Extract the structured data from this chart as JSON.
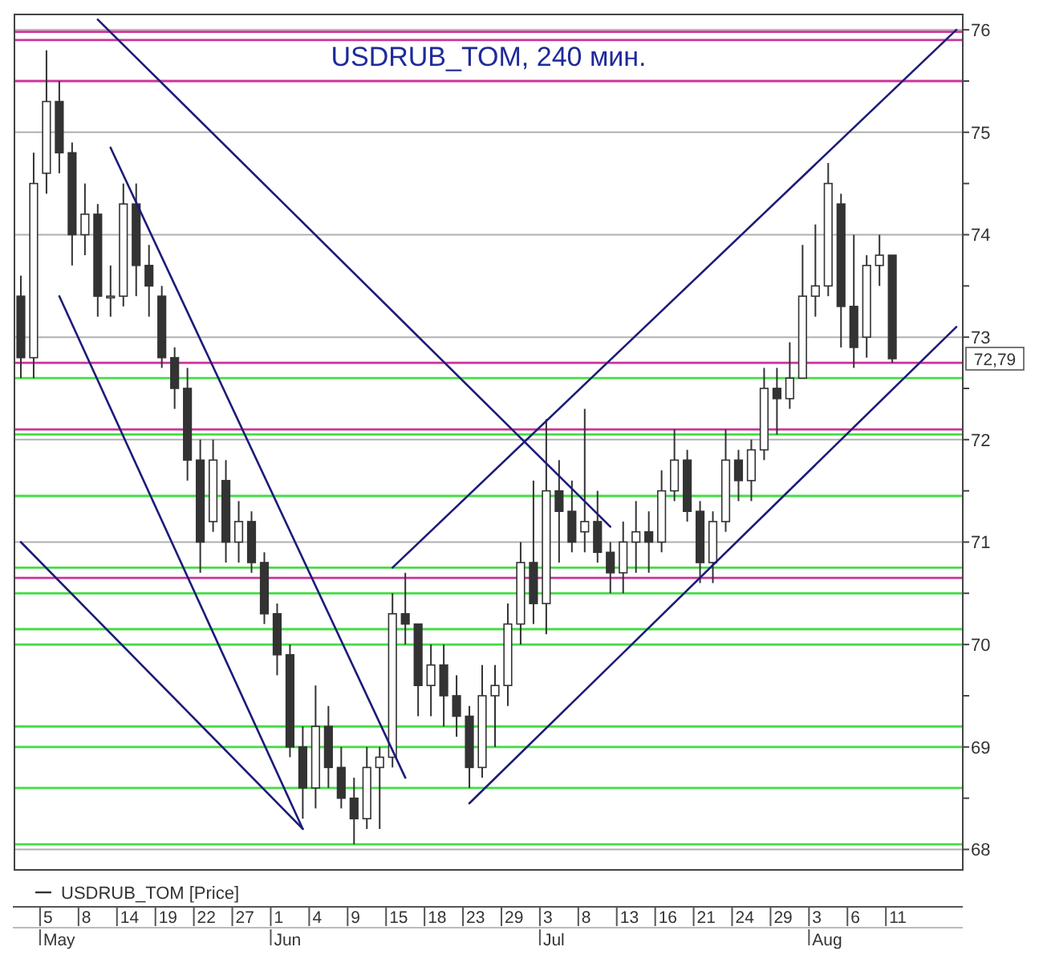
{
  "chart_data": {
    "type": "candlestick",
    "title": "USDRUB_TOM, 240 мин.",
    "categories": [
      null,
      null,
      "5",
      null,
      null,
      "8",
      null,
      null,
      "14",
      null,
      null,
      "19",
      null,
      null,
      "22",
      null,
      null,
      "27",
      null,
      null,
      "1",
      null,
      null,
      "4",
      null,
      null,
      "9",
      null,
      null,
      "15",
      null,
      null,
      "18",
      null,
      null,
      "23",
      null,
      null,
      "29",
      null,
      null,
      "3",
      null,
      null,
      "8",
      null,
      null,
      "13",
      null,
      null,
      "16",
      null,
      null,
      "21",
      null,
      null,
      "24",
      null,
      null,
      "29",
      null,
      null,
      "3",
      null,
      null,
      "6",
      null,
      null,
      "11",
      null,
      null,
      null,
      null,
      null
    ],
    "ylim": [
      67.8,
      76.15
    ],
    "yticks": [
      68,
      {
        "value": 68.5,
        "label": null
      },
      69,
      {
        "value": 69.5,
        "label": null
      },
      70,
      {
        "value": 70.5,
        "label": null
      },
      71,
      {
        "value": 71.5,
        "label": null
      },
      72,
      {
        "value": 72.5,
        "label": null
      },
      73,
      {
        "value": 73.5,
        "label": null
      },
      74,
      {
        "value": 74.5,
        "label": null
      },
      75,
      {
        "value": 75.5,
        "label": null
      },
      76
    ],
    "grid": "y",
    "legend": "bottom",
    "series": [
      {
        "name": "USDRUB_TOM [Price]",
        "color": "#333333",
        "ohlc": [
          [
            73.4,
            73.6,
            72.6,
            72.8
          ],
          [
            72.8,
            74.8,
            72.6,
            74.5
          ],
          [
            74.6,
            75.8,
            74.4,
            75.3
          ],
          [
            75.3,
            75.5,
            74.6,
            74.8
          ],
          [
            74.8,
            74.9,
            73.7,
            74.0
          ],
          [
            74.0,
            74.5,
            73.8,
            74.2
          ],
          [
            74.2,
            74.3,
            73.2,
            73.4
          ],
          [
            73.4,
            73.7,
            73.2,
            73.4
          ],
          [
            73.4,
            74.5,
            73.3,
            74.3
          ],
          [
            74.3,
            74.5,
            73.4,
            73.7
          ],
          [
            73.7,
            73.9,
            73.2,
            73.5
          ],
          [
            73.4,
            73.5,
            72.7,
            72.8
          ],
          [
            72.8,
            72.9,
            72.3,
            72.5
          ],
          [
            72.5,
            72.7,
            71.6,
            71.8
          ],
          [
            71.8,
            72.0,
            70.7,
            71.0
          ],
          [
            71.2,
            72.0,
            71.1,
            71.8
          ],
          [
            71.6,
            71.8,
            70.8,
            71.0
          ],
          [
            71.0,
            71.4,
            70.8,
            71.2
          ],
          [
            71.2,
            71.3,
            70.7,
            70.8
          ],
          [
            70.8,
            70.9,
            70.2,
            70.3
          ],
          [
            70.3,
            70.4,
            69.7,
            69.9
          ],
          [
            69.9,
            70.0,
            68.9,
            69.0
          ],
          [
            69.0,
            69.2,
            68.3,
            68.6
          ],
          [
            68.6,
            69.6,
            68.4,
            69.2
          ],
          [
            69.2,
            69.4,
            68.6,
            68.8
          ],
          [
            68.8,
            69.0,
            68.4,
            68.5
          ],
          [
            68.5,
            68.7,
            68.05,
            68.3
          ],
          [
            68.3,
            69.0,
            68.2,
            68.8
          ],
          [
            68.8,
            69.0,
            68.2,
            68.9
          ],
          [
            68.9,
            70.5,
            68.8,
            70.3
          ],
          [
            70.3,
            70.7,
            70.0,
            70.2
          ],
          [
            70.2,
            70.2,
            69.3,
            69.6
          ],
          [
            69.6,
            70.0,
            69.3,
            69.8
          ],
          [
            69.8,
            70.0,
            69.2,
            69.5
          ],
          [
            69.5,
            69.7,
            69.1,
            69.3
          ],
          [
            69.3,
            69.4,
            68.6,
            68.8
          ],
          [
            68.8,
            69.8,
            68.7,
            69.5
          ],
          [
            69.5,
            69.8,
            69.0,
            69.6
          ],
          [
            69.6,
            70.4,
            69.4,
            70.2
          ],
          [
            70.2,
            71.0,
            70.0,
            70.8
          ],
          [
            70.8,
            71.6,
            70.2,
            70.4
          ],
          [
            70.4,
            72.2,
            70.1,
            71.5
          ],
          [
            71.5,
            71.8,
            70.8,
            71.3
          ],
          [
            71.3,
            71.6,
            70.9,
            71.0
          ],
          [
            71.1,
            72.3,
            70.9,
            71.2
          ],
          [
            71.2,
            71.5,
            70.8,
            70.9
          ],
          [
            70.9,
            71.0,
            70.5,
            70.7
          ],
          [
            70.7,
            71.2,
            70.5,
            71.0
          ],
          [
            71.0,
            71.4,
            70.7,
            71.1
          ],
          [
            71.1,
            71.3,
            70.7,
            71.0
          ],
          [
            71.0,
            71.7,
            70.9,
            71.5
          ],
          [
            71.5,
            72.1,
            71.4,
            71.8
          ],
          [
            71.8,
            71.9,
            71.2,
            71.3
          ],
          [
            71.3,
            71.4,
            70.6,
            70.8
          ],
          [
            70.8,
            71.3,
            70.6,
            71.2
          ],
          [
            71.2,
            72.1,
            71.1,
            71.8
          ],
          [
            71.8,
            71.9,
            71.4,
            71.6
          ],
          [
            71.6,
            72.0,
            71.4,
            71.9
          ],
          [
            71.9,
            72.7,
            71.8,
            72.5
          ],
          [
            72.5,
            72.7,
            72.05,
            72.4
          ],
          [
            72.4,
            72.95,
            72.3,
            72.6
          ],
          [
            72.6,
            73.9,
            72.6,
            73.4
          ],
          [
            73.4,
            74.1,
            73.2,
            73.5
          ],
          [
            73.5,
            74.7,
            73.4,
            74.5
          ],
          [
            74.3,
            74.4,
            72.9,
            73.3
          ],
          [
            73.3,
            74.0,
            72.7,
            72.9
          ],
          [
            73.0,
            73.8,
            72.8,
            73.7
          ],
          [
            73.7,
            74.0,
            73.5,
            73.8
          ],
          [
            73.8,
            73.8,
            72.75,
            72.79
          ],
          null,
          null,
          null,
          null,
          null
        ]
      },
      {
        "type": "line",
        "color": "#1c1c78",
        "values": [
          null,
          null,
          null,
          null,
          null,
          null,
          76.1,
          null,
          null,
          null,
          null,
          null,
          null,
          null,
          null,
          null,
          null,
          null,
          null,
          null,
          null,
          null,
          null,
          null,
          null,
          null,
          null,
          null,
          null,
          null,
          null,
          null,
          null,
          null,
          null,
          null,
          null,
          null,
          null,
          null,
          null,
          null,
          null,
          null,
          null,
          null,
          71.15,
          null,
          null,
          null,
          null,
          null,
          null,
          null,
          null,
          null,
          null,
          null,
          null,
          null,
          null,
          null,
          null,
          null,
          null,
          null,
          null,
          null,
          null,
          null,
          null,
          null,
          null,
          null
        ]
      },
      {
        "type": "line",
        "color": "#1c1c78",
        "values": [
          71.0,
          null,
          null,
          null,
          null,
          null,
          null,
          null,
          null,
          null,
          null,
          null,
          null,
          null,
          null,
          null,
          null,
          null,
          null,
          null,
          null,
          null,
          68.2,
          null,
          null,
          null,
          null,
          null,
          null,
          null,
          null,
          null,
          null,
          null,
          null,
          null,
          null,
          null,
          null,
          null,
          null,
          null,
          null,
          null,
          null,
          null,
          null,
          null,
          null,
          null,
          null,
          null,
          null,
          null,
          null,
          null,
          null,
          null,
          null,
          null,
          null,
          null,
          null,
          null,
          null,
          null,
          null,
          null,
          null,
          null,
          null,
          null,
          null,
          null
        ]
      },
      {
        "type": "line",
        "color": "#1c1c78",
        "values": [
          null,
          null,
          null,
          73.4,
          null,
          null,
          null,
          null,
          null,
          null,
          null,
          null,
          null,
          null,
          null,
          null,
          null,
          null,
          null,
          null,
          null,
          null,
          68.2,
          null,
          null,
          null,
          null,
          null,
          null,
          null,
          null,
          null,
          null,
          null,
          null,
          null,
          null,
          null,
          null,
          null,
          null,
          null,
          null,
          null,
          null,
          null,
          null,
          null,
          null,
          null,
          null,
          null,
          null,
          null,
          null,
          null,
          null,
          null,
          null,
          null,
          null,
          null,
          null,
          null,
          null,
          null,
          null,
          null,
          null,
          null,
          null,
          null,
          null,
          null
        ]
      },
      {
        "type": "line",
        "color": "#1c1c78",
        "values": [
          null,
          null,
          null,
          null,
          null,
          null,
          null,
          74.85,
          null,
          null,
          null,
          null,
          null,
          null,
          null,
          null,
          null,
          null,
          null,
          null,
          null,
          null,
          null,
          null,
          null,
          null,
          null,
          null,
          null,
          null,
          68.7,
          null,
          null,
          null,
          null,
          null,
          null,
          null,
          null,
          null,
          null,
          null,
          null,
          null,
          null,
          null,
          null,
          null,
          null,
          null,
          null,
          null,
          null,
          null,
          null,
          null,
          null,
          null,
          null,
          null,
          null,
          null,
          null,
          null,
          null,
          null,
          null,
          null,
          null,
          null,
          null,
          null,
          null,
          null
        ]
      },
      {
        "type": "line",
        "color": "#1c1c78",
        "values": [
          null,
          null,
          null,
          null,
          null,
          null,
          null,
          null,
          null,
          null,
          null,
          null,
          null,
          null,
          null,
          null,
          null,
          null,
          null,
          null,
          null,
          null,
          null,
          null,
          null,
          null,
          null,
          null,
          null,
          70.75,
          null,
          null,
          null,
          null,
          null,
          null,
          null,
          null,
          null,
          null,
          null,
          null,
          null,
          null,
          null,
          null,
          null,
          null,
          null,
          null,
          null,
          null,
          null,
          null,
          null,
          null,
          null,
          null,
          null,
          null,
          null,
          null,
          null,
          null,
          null,
          null,
          null,
          null,
          null,
          null,
          null,
          null,
          null,
          76.0
        ]
      },
      {
        "type": "line",
        "color": "#1c1c78",
        "values": [
          null,
          null,
          null,
          null,
          null,
          null,
          null,
          null,
          null,
          null,
          null,
          null,
          null,
          null,
          null,
          null,
          null,
          null,
          null,
          null,
          null,
          null,
          null,
          null,
          null,
          null,
          null,
          null,
          null,
          null,
          null,
          null,
          null,
          null,
          null,
          68.45,
          null,
          null,
          null,
          null,
          null,
          null,
          null,
          null,
          null,
          null,
          null,
          null,
          null,
          null,
          null,
          null,
          null,
          null,
          null,
          null,
          null,
          null,
          null,
          null,
          null,
          null,
          null,
          null,
          null,
          null,
          null,
          null,
          null,
          null,
          null,
          null,
          null,
          73.1
        ]
      }
    ],
    "ref_lines": [
      {
        "axis": "y",
        "value": 75.98,
        "color": "#cc3399"
      },
      {
        "axis": "y",
        "value": 75.9,
        "color": "#cc3399"
      },
      {
        "axis": "y",
        "value": 75.5,
        "color": "#cc3399"
      },
      {
        "axis": "y",
        "value": 72.75,
        "color": "#cc3399"
      },
      {
        "axis": "y",
        "value": 72.1,
        "color": "#cc3399"
      },
      {
        "axis": "y",
        "value": 70.65,
        "color": "#cc3399"
      },
      {
        "axis": "y",
        "value": 72.6,
        "color": "#44dd44"
      },
      {
        "axis": "y",
        "value": 72.05,
        "color": "#44dd44"
      },
      {
        "axis": "y",
        "value": 71.45,
        "color": "#44dd44"
      },
      {
        "axis": "y",
        "value": 70.75,
        "color": "#44dd44"
      },
      {
        "axis": "y",
        "value": 70.5,
        "color": "#44dd44"
      },
      {
        "axis": "y",
        "value": 70.15,
        "color": "#44dd44"
      },
      {
        "axis": "y",
        "value": 70.0,
        "color": "#44dd44"
      },
      {
        "axis": "y",
        "value": 69.2,
        "color": "#44dd44"
      },
      {
        "axis": "y",
        "value": 69.0,
        "color": "#44dd44"
      },
      {
        "axis": "y",
        "value": 68.6,
        "color": "#44dd44"
      },
      {
        "axis": "y",
        "value": 68.05,
        "color": "#44dd44"
      }
    ],
    "annotations": [
      {
        "text": "72,79",
        "y": 72.79
      },
      "May",
      "Jun",
      "Jul",
      "Aug"
    ]
  }
}
